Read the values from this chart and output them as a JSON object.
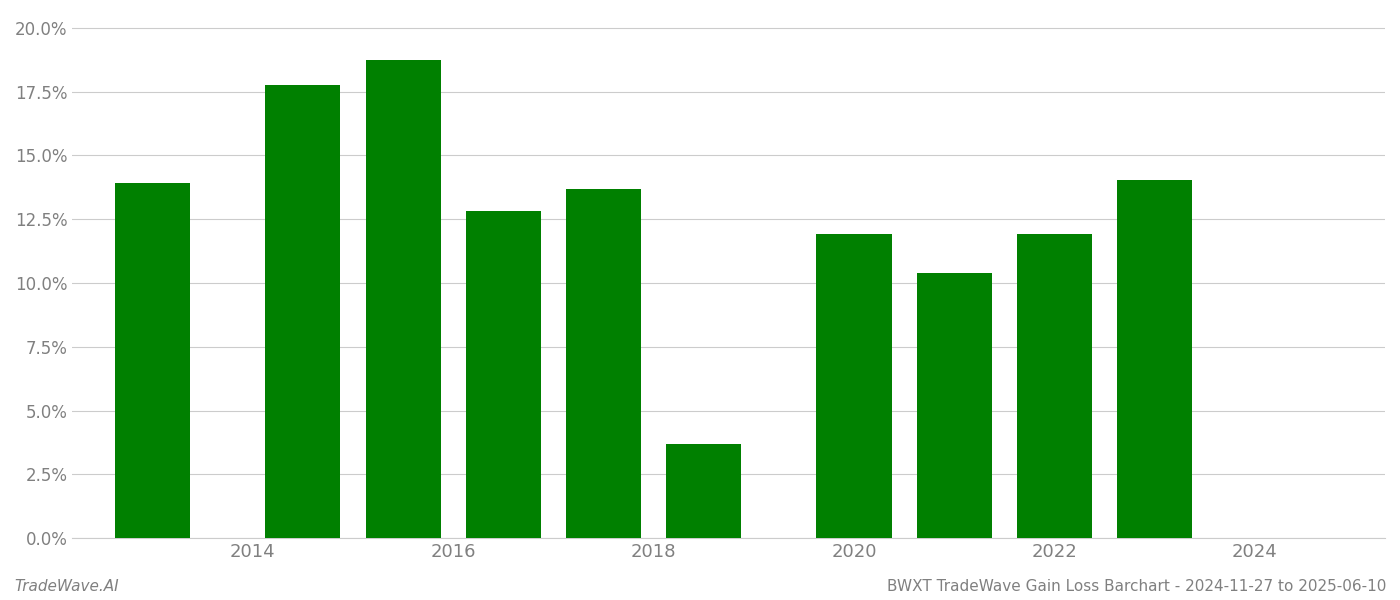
{
  "bar_positions": [
    2013,
    2014.5,
    2015.5,
    2016.5,
    2017.5,
    2018.5,
    2020,
    2021,
    2022,
    2023,
    2024
  ],
  "values": [
    0.139,
    0.1775,
    0.1875,
    0.128,
    0.137,
    0.037,
    0.119,
    0.104,
    0.119,
    0.1405,
    0.0
  ],
  "bar_color": "#008000",
  "background_color": "#ffffff",
  "ylim": [
    0,
    0.205
  ],
  "yticks": [
    0.0,
    0.025,
    0.05,
    0.075,
    0.1,
    0.125,
    0.15,
    0.175,
    0.2
  ],
  "xtick_labels": [
    "2014",
    "2016",
    "2018",
    "2020",
    "2022",
    "2024"
  ],
  "xtick_positions": [
    2014,
    2016,
    2018,
    2020,
    2022,
    2024
  ],
  "xlim_left": 2012.2,
  "xlim_right": 2025.3,
  "bar_width": 0.75,
  "footer_left": "TradeWave.AI",
  "footer_right": "BWXT TradeWave Gain Loss Barchart - 2024-11-27 to 2025-06-10",
  "grid_color": "#cccccc",
  "text_color": "#808080"
}
